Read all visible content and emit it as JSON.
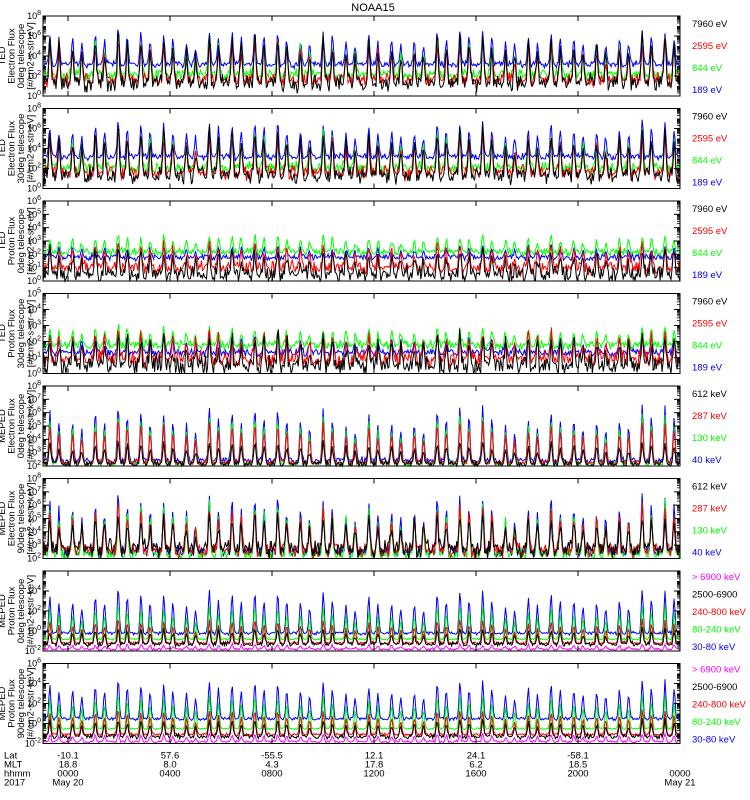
{
  "chart_data": {
    "type": "line",
    "title": "NOAA15",
    "y_scale": "log",
    "grid": false,
    "panels": [
      {
        "ylabel": [
          "TED",
          "Electron Flux",
          "0deg telescope",
          "[#/cm2-s-str-eV]"
        ],
        "ylim": [
          1,
          100000000
        ],
        "tick_labels": [
          "10^0",
          "10^2",
          "10^4",
          "10^6",
          "10^8"
        ],
        "series": [
          {
            "name": "7960 eV",
            "color": "#000000",
            "baseline": 20,
            "peak": 3000000,
            "noise": 2.0
          },
          {
            "name": "2595 eV",
            "color": "#ff0000",
            "baseline": 40,
            "peak": 600000,
            "noise": 1.6
          },
          {
            "name": "844 eV",
            "color": "#00ff00",
            "baseline": 120,
            "peak": 1000000,
            "noise": 1.4
          },
          {
            "name": "189 eV",
            "color": "#0000ff",
            "baseline": 1500,
            "peak": 5000000,
            "noise": 0.8
          }
        ]
      },
      {
        "ylabel": [
          "TED",
          "Electron Flux",
          "30deg telescope",
          "[#/cm2-s-str-eV]"
        ],
        "ylim": [
          1,
          100000000
        ],
        "tick_labels": [
          "10^0",
          "10^2",
          "10^4",
          "10^6",
          "10^8"
        ],
        "series": [
          {
            "name": "7960 eV",
            "color": "#000000",
            "baseline": 20,
            "peak": 2000000,
            "noise": 2.0
          },
          {
            "name": "2595 eV",
            "color": "#ff0000",
            "baseline": 40,
            "peak": 500000,
            "noise": 1.6
          },
          {
            "name": "844 eV",
            "color": "#00ff00",
            "baseline": 120,
            "peak": 800000,
            "noise": 1.4
          },
          {
            "name": "189 eV",
            "color": "#0000ff",
            "baseline": 1500,
            "peak": 6000000,
            "noise": 0.8
          }
        ]
      },
      {
        "ylabel": [
          "TED",
          "Proton Flux",
          "0deg telescope",
          "[#/cm2-s-str-eV]"
        ],
        "ylim": [
          1,
          1000000
        ],
        "tick_labels": [
          "10^0",
          "10^1",
          "10^2",
          "10^3",
          "10^4",
          "10^5",
          "10^6"
        ],
        "series": [
          {
            "name": "7960 eV",
            "color": "#000000",
            "baseline": 3,
            "peak": 300,
            "noise": 1.6
          },
          {
            "name": "2595 eV",
            "color": "#ff0000",
            "baseline": 10,
            "peak": 800,
            "noise": 1.2
          },
          {
            "name": "844 eV",
            "color": "#00ff00",
            "baseline": 150,
            "peak": 3000,
            "noise": 0.7
          },
          {
            "name": "189 eV",
            "color": "#0000ff",
            "baseline": 60,
            "peak": 500,
            "noise": 0.6
          }
        ]
      },
      {
        "ylabel": [
          "TED",
          "Proton Flux",
          "30deg telescope",
          "[#/cm2-s-str-eV]"
        ],
        "ylim": [
          1,
          100000
        ],
        "tick_labels": [
          "10^0",
          "10^1",
          "10^2",
          "10^3",
          "10^4",
          "10^5"
        ],
        "series": [
          {
            "name": "7960 eV",
            "color": "#000000",
            "baseline": 3,
            "peak": 300,
            "noise": 1.6
          },
          {
            "name": "2595 eV",
            "color": "#ff0000",
            "baseline": 8,
            "peak": 500,
            "noise": 1.2
          },
          {
            "name": "844 eV",
            "color": "#00ff00",
            "baseline": 60,
            "peak": 1000,
            "noise": 0.7
          },
          {
            "name": "189 eV",
            "color": "#0000ff",
            "baseline": 20,
            "peak": 300,
            "noise": 0.6
          }
        ]
      },
      {
        "ylabel": [
          "MEPED",
          "Electron Flux",
          "0deg telescope",
          "[#/cm2-s-str-keV]"
        ],
        "ylim": [
          100,
          100000000
        ],
        "tick_labels": [
          "10^2",
          "10^3",
          "10^4",
          "10^5",
          "10^6",
          "10^7",
          "10^8"
        ],
        "series": [
          {
            "name": "612 keV",
            "color": "#000000",
            "baseline": 150,
            "peak": 8000,
            "noise": 0.6
          },
          {
            "name": "287 keV",
            "color": "#ff0000",
            "baseline": 180,
            "peak": 300000,
            "noise": 0.5
          },
          {
            "name": "130 keV",
            "color": "#00ff00",
            "baseline": 150,
            "peak": 1000000,
            "noise": 0.4
          },
          {
            "name": "40 keV",
            "color": "#0000ff",
            "baseline": 250,
            "peak": 5000000,
            "noise": 0.6
          }
        ]
      },
      {
        "ylabel": [
          "MEPED",
          "Electron Flux",
          "90deg telescope",
          "[#/cm2-s-str-keV]"
        ],
        "ylim": [
          100,
          100000000
        ],
        "tick_labels": [
          "10^2",
          "10^3",
          "10^4",
          "10^5",
          "10^6",
          "10^7",
          "10^8"
        ],
        "series": [
          {
            "name": "612 keV",
            "color": "#000000",
            "baseline": 500,
            "peak": 300000,
            "noise": 1.6
          },
          {
            "name": "287 keV",
            "color": "#ff0000",
            "baseline": 400,
            "peak": 1000000,
            "noise": 1.3
          },
          {
            "name": "130 keV",
            "color": "#00ff00",
            "baseline": 200,
            "peak": 3000000,
            "noise": 1.0
          },
          {
            "name": "40 keV",
            "color": "#0000ff",
            "baseline": 300,
            "peak": 10000000,
            "noise": 1.0
          }
        ]
      },
      {
        "ylabel": [
          "MEPED",
          "Proton Flux",
          "0deg telescope",
          "[#/cm2-s-str-keV]"
        ],
        "ylim": [
          0.01,
          1000000
        ],
        "tick_labels": [
          "10^-2",
          "10^0",
          "10^2",
          "10^4"
        ],
        "series": [
          {
            "name": "> 6900 keV",
            "color": "#ff00ff",
            "baseline": 0.015,
            "peak": 0.05,
            "noise": 0.3
          },
          {
            "name": "2500-6900",
            "color": "#000000",
            "baseline": 0.05,
            "peak": 2,
            "noise": 0.6
          },
          {
            "name": "240-800 keV",
            "color": "#ff0000",
            "baseline": 0.06,
            "peak": 20,
            "noise": 0.3
          },
          {
            "name": "80-240 keV",
            "color": "#00ff00",
            "baseline": 0.15,
            "peak": 500,
            "noise": 0.2
          },
          {
            "name": "30-80 keV",
            "color": "#0000ff",
            "baseline": 0.6,
            "peak": 20000,
            "noise": 0.4
          }
        ]
      },
      {
        "ylabel": [
          "MEPED",
          "Proton Flux",
          "90deg telescope",
          "[#/cm2-s-str-keV]"
        ],
        "ylim": [
          0.01,
          1000000
        ],
        "tick_labels": [
          "10^-2",
          "10^0",
          "10^2",
          "10^4",
          "10^6"
        ],
        "series": [
          {
            "name": "> 6900 keV",
            "color": "#ff00ff",
            "baseline": 0.015,
            "peak": 0.1,
            "noise": 0.3
          },
          {
            "name": "2500-6900",
            "color": "#000000",
            "baseline": 0.05,
            "peak": 3,
            "noise": 0.6
          },
          {
            "name": "240-800 keV",
            "color": "#ff0000",
            "baseline": 0.08,
            "peak": 30,
            "noise": 0.3
          },
          {
            "name": "80-240 keV",
            "color": "#00ff00",
            "baseline": 0.3,
            "peak": 1000,
            "noise": 0.2
          },
          {
            "name": "30-80 keV",
            "color": "#0000ff",
            "baseline": 3,
            "peak": 30000,
            "noise": 0.4
          }
        ]
      }
    ],
    "x_axis": {
      "row_labels": [
        "Lat",
        "MLT",
        "hhmm",
        "2017"
      ],
      "ticks": [
        {
          "lat": "-10.1",
          "mlt": "18.8",
          "hhmm": "0000",
          "date": "May 20"
        },
        {
          "lat": "57.6",
          "mlt": "8.0",
          "hhmm": "0400",
          "date": ""
        },
        {
          "lat": "-55.5",
          "mlt": "4.3",
          "hhmm": "0800",
          "date": ""
        },
        {
          "lat": "12.1",
          "mlt": "17.8",
          "hhmm": "1200",
          "date": ""
        },
        {
          "lat": "24.1",
          "mlt": "6.2",
          "hhmm": "1600",
          "date": ""
        },
        {
          "lat": "-58.1",
          "mlt": "18.5",
          "hhmm": "2000",
          "date": ""
        },
        {
          "lat": "",
          "mlt": "",
          "hhmm": "0000",
          "date": "May 21"
        }
      ]
    },
    "passes_per_day": 28
  }
}
